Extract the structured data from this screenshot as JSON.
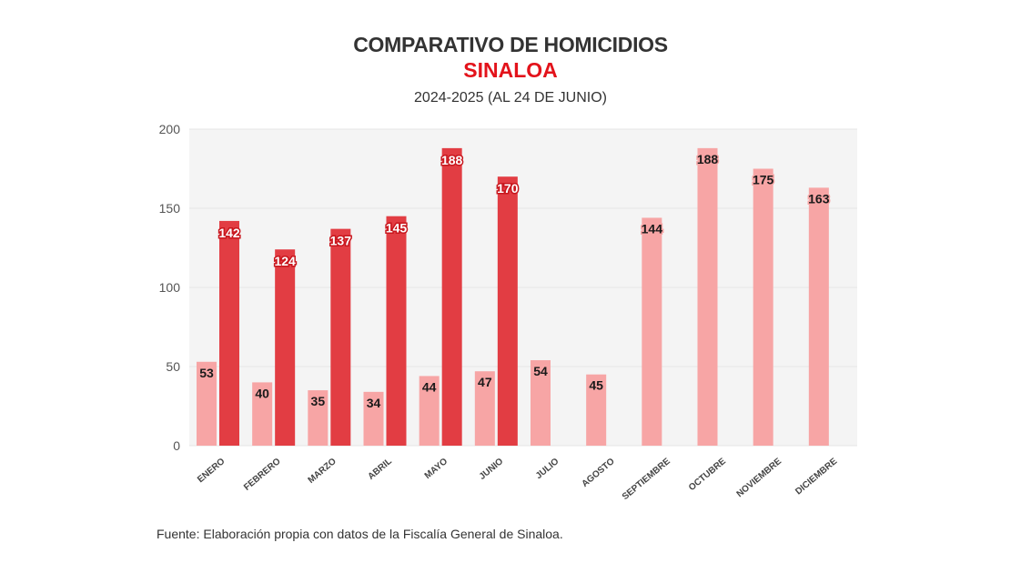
{
  "header": {
    "title": "COMPARATIVO DE HOMICIDIOS",
    "subtitle": "SINALOA",
    "period": "2024-2025 (AL 24 DE JUNIO)"
  },
  "footer": {
    "source": "Fuente: Elaboración propia con datos de la Fiscalía General de Sinaloa."
  },
  "colors": {
    "series_2024": "#f7a5a5",
    "series_2025": "#e23d43",
    "plot_background": "#f4f4f4",
    "gridline": "#e6e6e6",
    "title": "#333333",
    "accent": "#e3131b"
  },
  "chart_data": {
    "type": "bar",
    "title": "COMPARATIVO DE HOMICIDIOS",
    "subtitle": "SINALOA",
    "xlabel": "",
    "ylabel": "",
    "ylim": [
      0,
      200
    ],
    "yticks": [
      0,
      50,
      100,
      150,
      200
    ],
    "grid": true,
    "legend": "none",
    "categories": [
      "ENERO",
      "FEBRERO",
      "MARZO",
      "ABRIL",
      "MAYO",
      "JUNIO",
      "JULIO",
      "AGOSTO",
      "SEPTIEMBRE",
      "OCTUBRE",
      "NOVIEMBRE",
      "DICIEMBRE"
    ],
    "series": [
      {
        "name": "2024",
        "color": "#f7a5a5",
        "values": [
          53,
          40,
          35,
          34,
          44,
          47,
          54,
          45,
          144,
          188,
          175,
          163
        ]
      },
      {
        "name": "2025",
        "color": "#e23d43",
        "values": [
          142,
          124,
          137,
          145,
          188,
          170,
          null,
          null,
          null,
          null,
          null,
          null
        ]
      }
    ]
  }
}
